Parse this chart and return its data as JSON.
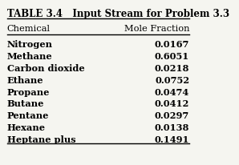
{
  "title": "TABLE 3.4   Input Stream for Problem 3.3",
  "col1_header": "Chemical",
  "col2_header": "Mole Fraction",
  "chemicals": [
    "Nitrogen",
    "Methane",
    "Carbon dioxide",
    "Ethane",
    "Propane",
    "Butane",
    "Pentane",
    "Hexane",
    "Heptane plus"
  ],
  "mole_fractions": [
    "0.0167",
    "0.6051",
    "0.0218",
    "0.0752",
    "0.0474",
    "0.0412",
    "0.0297",
    "0.0138",
    "0.1491"
  ],
  "bg_color": "#f5f5f0",
  "title_fontsize": 8.5,
  "header_fontsize": 8.2,
  "data_fontsize": 8.2
}
